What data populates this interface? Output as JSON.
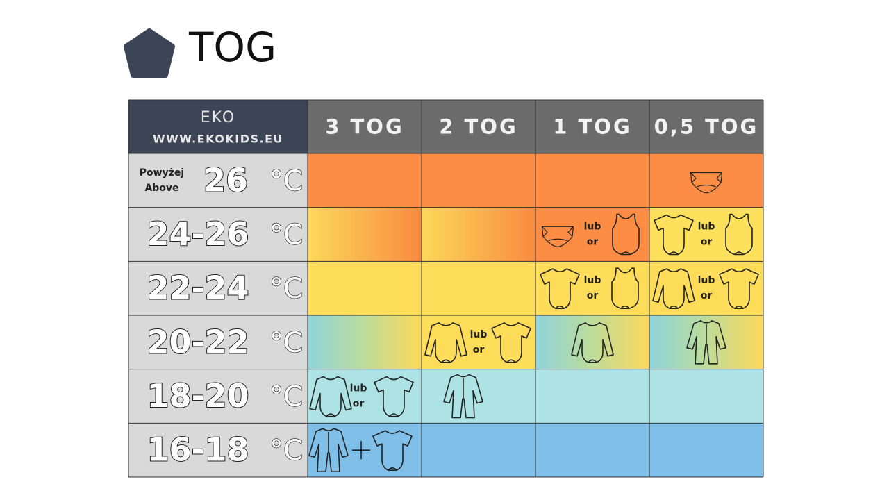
{
  "header": {
    "title": "TOG"
  },
  "table": {
    "brand": {
      "name": "EKO",
      "url": "WWW.EKOKIDS.EU"
    },
    "columns": [
      "3 TOG",
      "2 TOG",
      "1 TOG",
      "0,5 TOG"
    ],
    "rows": [
      {
        "prefix": [
          "Powyżej",
          "Above"
        ],
        "range": "26",
        "unit": "°C",
        "cells": [
          null,
          null,
          null,
          null
        ]
      },
      {
        "range": "24-26",
        "unit": "°C",
        "cells": [
          null,
          null,
          [
            "lub",
            "or"
          ],
          [
            "lub",
            "or"
          ]
        ]
      },
      {
        "range": "22-24",
        "unit": "°C",
        "cells": [
          null,
          null,
          [
            "lub",
            "or"
          ],
          [
            "lub",
            "or"
          ]
        ]
      },
      {
        "range": "20-22",
        "unit": "°C",
        "cells": [
          null,
          [
            "lub",
            "or"
          ],
          null,
          null
        ]
      },
      {
        "range": "18-20",
        "unit": "°C",
        "cells": [
          [
            "lub",
            "or"
          ],
          null,
          null,
          null
        ]
      },
      {
        "range": "16-18",
        "unit": "°C",
        "cells": [
          null,
          null,
          null,
          null
        ]
      }
    ]
  }
}
